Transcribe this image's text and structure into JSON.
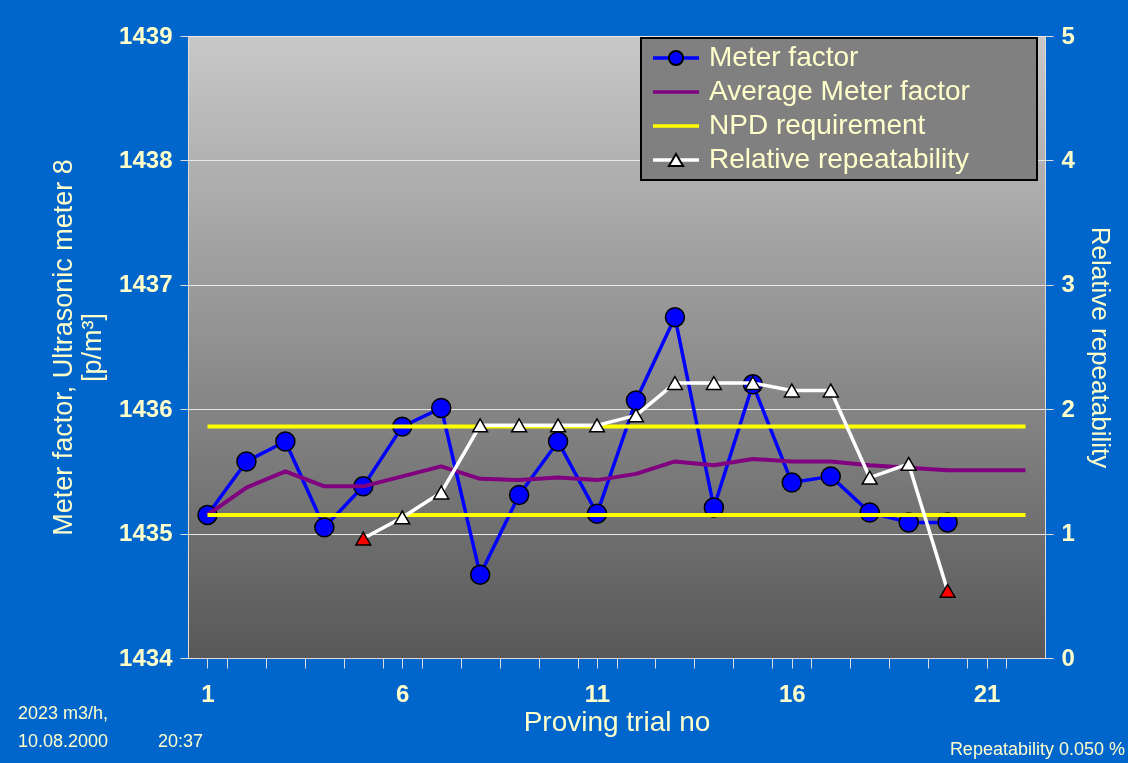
{
  "chart_data": {
    "type": "line",
    "xlabel": "Proving trial no",
    "ylabel": "Meter factor, Ultrasonic meter 8\n[p/m³]",
    "y2label": "Relative repeatability",
    "xlim": [
      0.5,
      22.5
    ],
    "xticks": [
      1,
      {
        "value": 1.5,
        "label": null
      },
      {
        "value": 2.5,
        "label": null
      },
      {
        "value": 3.5,
        "label": null
      },
      {
        "value": 4.5,
        "label": null
      },
      {
        "value": 5.5,
        "label": null
      },
      6,
      {
        "value": 6.5,
        "label": null
      },
      {
        "value": 7.5,
        "label": null
      },
      {
        "value": 8.5,
        "label": null
      },
      {
        "value": 9.5,
        "label": null
      },
      {
        "value": 10.5,
        "label": null
      },
      11,
      {
        "value": 11.5,
        "label": null
      },
      {
        "value": 12.5,
        "label": null
      },
      {
        "value": 13.5,
        "label": null
      },
      {
        "value": 14.5,
        "label": null
      },
      {
        "value": 15.5,
        "label": null
      },
      16,
      {
        "value": 16.5,
        "label": null
      },
      {
        "value": 17.5,
        "label": null
      },
      {
        "value": 18.5,
        "label": null
      },
      {
        "value": 19.5,
        "label": null
      },
      {
        "value": 20.5,
        "label": null
      },
      21,
      {
        "value": 21.5,
        "label": null
      }
    ],
    "ylim": [
      1434,
      1439
    ],
    "yticks": [
      1434,
      1435,
      1436,
      1437,
      1438,
      1439
    ],
    "y2lim": [
      0,
      5
    ],
    "y2ticks": [
      0,
      1,
      2,
      3,
      4,
      5
    ],
    "grid": "y",
    "legend": "top right",
    "series": [
      {
        "name": "Meter factor",
        "marker": "circle",
        "color": "#0000ff",
        "x": [
          1,
          2,
          3,
          4,
          5,
          6,
          7,
          8,
          9,
          10,
          11,
          12,
          13,
          14,
          15,
          16,
          17,
          18,
          19,
          20
        ],
        "values": [
          1435.15,
          1435.58,
          1435.74,
          1435.05,
          1435.38,
          1435.86,
          1436.01,
          1434.67,
          1435.31,
          1435.74,
          1435.16,
          1436.07,
          1436.74,
          1435.21,
          1436.2,
          1435.41,
          1435.46,
          1435.17,
          1435.09,
          1435.09
        ]
      },
      {
        "name": "Average Meter factor",
        "marker": "none",
        "color": "#800080",
        "x": [
          1,
          2,
          3,
          4,
          5,
          6,
          7,
          8,
          9,
          10,
          11,
          12,
          13,
          14,
          15,
          16,
          17,
          18,
          19,
          20,
          21,
          22
        ],
        "values": [
          1435.15,
          1435.37,
          1435.5,
          1435.38,
          1435.38,
          1435.46,
          1435.54,
          1435.44,
          1435.43,
          1435.45,
          1435.43,
          1435.48,
          1435.58,
          1435.55,
          1435.6,
          1435.58,
          1435.58,
          1435.55,
          null,
          1435.51,
          1435.51,
          1435.51
        ]
      },
      {
        "name": "NPD requirement",
        "marker": "none",
        "color": "#ffff00",
        "x": [
          1,
          22
        ],
        "values": [
          1435.86,
          1435.86
        ]
      },
      {
        "marker": "none",
        "color": "#ffff00",
        "x": [
          1,
          22
        ],
        "values": [
          1435.15,
          1435.15
        ]
      },
      {
        "name": "Relative repeatability",
        "marker": "triangle",
        "axis": "y2",
        "color": "#ffffff",
        "x": [
          5,
          6,
          7,
          8,
          9,
          10,
          11,
          12,
          13,
          14,
          15,
          16,
          17,
          18,
          19,
          20
        ],
        "values": [
          0.96,
          1.13,
          1.33,
          1.87,
          1.87,
          1.87,
          1.87,
          1.95,
          2.21,
          2.21,
          2.21,
          2.15,
          2.15,
          1.45,
          1.56,
          0.54
        ],
        "colors": [
          "#ff0000",
          "#ffffff",
          "#ffffff",
          "#ffffff",
          "#ffffff",
          "#ffffff",
          "#ffffff",
          "#ffffff",
          "#ffffff",
          "#ffffff",
          "#ffffff",
          "#ffffff",
          "#ffffff",
          "#ffffff",
          "#ffffff",
          "#ff0000"
        ]
      }
    ],
    "annotations": [
      "2023 m3/h,",
      "10.08.2000",
      "20:37",
      "Repeatability 0.050 %"
    ]
  }
}
